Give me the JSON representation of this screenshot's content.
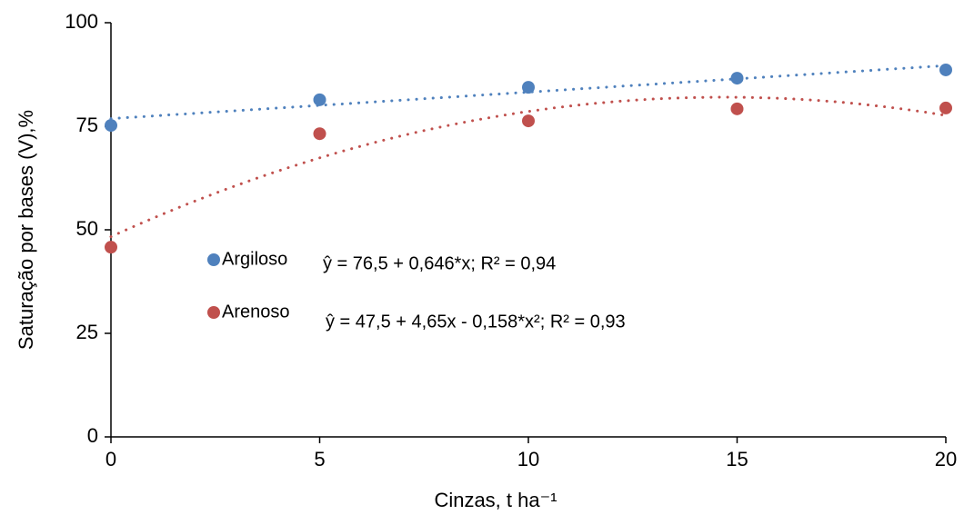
{
  "chart_data": {
    "type": "scatter",
    "x_label": "Cinzas, t ha⁻¹",
    "y_label": "Saturação por bases (V),%",
    "x": [
      0,
      5,
      10,
      15,
      20
    ],
    "series": [
      {
        "name": "Argiloso",
        "color": "#4f81bd",
        "values": [
          75.2,
          81.4,
          84.4,
          86.6,
          88.6
        ],
        "trendline_degree": 1,
        "equation": "ŷ = 76,5 + 0,646*x; R² = 0,94"
      },
      {
        "name": "Arenoso",
        "color": "#c0504d",
        "values": [
          45.8,
          73.2,
          76.3,
          79.2,
          79.4
        ],
        "trendline_degree": 2,
        "equation": "ŷ = 47,5 + 4,65x - 0,158*x²; R² = 0,93"
      }
    ],
    "xlim": [
      0,
      20
    ],
    "xticks": [
      0,
      5,
      10,
      15,
      20
    ],
    "ylim": [
      0,
      100
    ],
    "yticks": [
      0,
      25,
      50,
      75,
      100
    ],
    "grid": false
  }
}
